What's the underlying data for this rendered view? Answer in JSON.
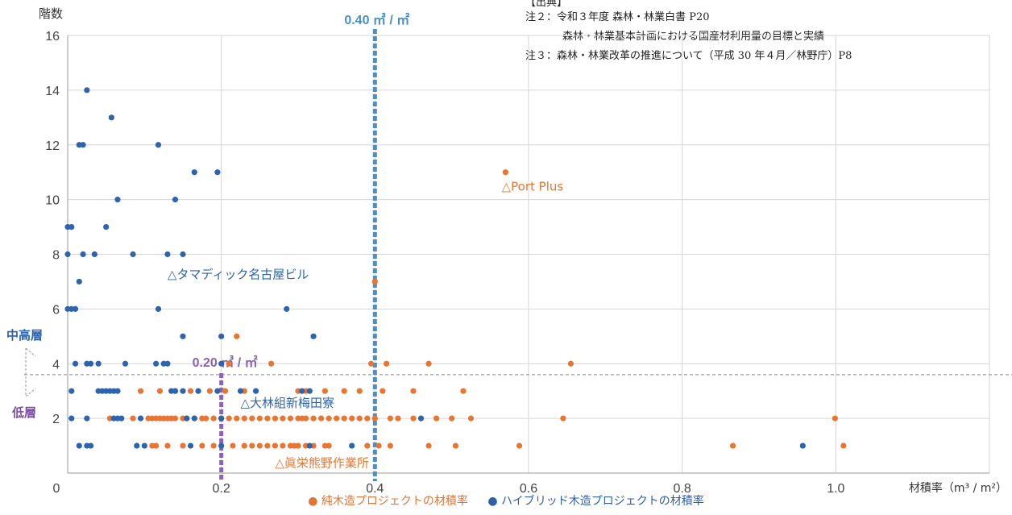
{
  "notes": {
    "source_header": "【出典】",
    "note2_line1": "注２：令和３年度 森林・林業白書 P20",
    "note2_line2": "森林・林業基本計画における国産材利用量の目標と実績",
    "note3": "注３：森林・林業改革の推進について（平成 30 年４月／林野庁）P8"
  },
  "legend": {
    "pure_label": "● 純木造プロジェクトの材積率",
    "hybrid_label": "● ハイブリッド木造プロジェクトの材積率"
  },
  "colors": {
    "pure": "#e87632",
    "hybrid": "#2e63ad",
    "line040": "#4a90c8",
    "line020": "#8b63b0",
    "grid": "#d6d6d6",
    "threshold": "#888888"
  },
  "chart_data": {
    "type": "scatter",
    "xlabel": "材積率（m³ / m²）",
    "ylabel": "階数",
    "xlim": [
      0,
      1.2
    ],
    "ylim": [
      0,
      16
    ],
    "x_ticks": [
      "0",
      "0.2",
      "0.4",
      "0.6",
      "0.8",
      "1.0"
    ],
    "x_tick_values": [
      0,
      0.2,
      0.4,
      0.6,
      0.8,
      1.0
    ],
    "y_ticks": [
      "2",
      "4",
      "6",
      "8",
      "10",
      "12",
      "14",
      "16"
    ],
    "y_tick_values": [
      2,
      4,
      6,
      8,
      10,
      12,
      14,
      16
    ],
    "grid": "both",
    "reference_lines": [
      {
        "x": 0.4,
        "label": "0.40 ㎥ / ㎡",
        "color": "#4a90c8"
      },
      {
        "x": 0.2,
        "label": "0.20 ㎥ / ㎡",
        "color": "#8b63b0"
      }
    ],
    "threshold": {
      "y": 3.6,
      "upper_label": "中高層",
      "lower_label": "低層"
    },
    "annotations": [
      {
        "text": "△Port Plus",
        "x": 0.565,
        "y": 10.5,
        "series": "pure"
      },
      {
        "text": "△タマディック名古屋ビル",
        "x": 0.13,
        "y": 7.3,
        "series": "hybrid"
      },
      {
        "text": "△大林組新梅田寮",
        "x": 0.225,
        "y": 2.6,
        "series": "hybrid"
      },
      {
        "text": "△眞栄熊野作業所",
        "x": 0.27,
        "y": 0.4,
        "series": "pure"
      }
    ],
    "series": [
      {
        "name": "純木造プロジェクトの材積率",
        "key": "pure",
        "points": [
          [
            0.57,
            11
          ],
          [
            0.4,
            7
          ],
          [
            0.22,
            5
          ],
          [
            0.21,
            4
          ],
          [
            0.265,
            4
          ],
          [
            0.395,
            4
          ],
          [
            0.415,
            4
          ],
          [
            0.47,
            4
          ],
          [
            0.655,
            4
          ],
          [
            0.095,
            3
          ],
          [
            0.12,
            3
          ],
          [
            0.14,
            3
          ],
          [
            0.16,
            3
          ],
          [
            0.185,
            3
          ],
          [
            0.205,
            3
          ],
          [
            0.23,
            3
          ],
          [
            0.3,
            3
          ],
          [
            0.31,
            3
          ],
          [
            0.335,
            3
          ],
          [
            0.36,
            3
          ],
          [
            0.38,
            3
          ],
          [
            0.41,
            3
          ],
          [
            0.45,
            3
          ],
          [
            0.515,
            3
          ],
          [
            0.055,
            2
          ],
          [
            0.085,
            2
          ],
          [
            0.105,
            2
          ],
          [
            0.11,
            2
          ],
          [
            0.115,
            2
          ],
          [
            0.12,
            2
          ],
          [
            0.125,
            2
          ],
          [
            0.13,
            2
          ],
          [
            0.135,
            2
          ],
          [
            0.14,
            2
          ],
          [
            0.15,
            2
          ],
          [
            0.155,
            2
          ],
          [
            0.165,
            2
          ],
          [
            0.175,
            2
          ],
          [
            0.18,
            2
          ],
          [
            0.19,
            2
          ],
          [
            0.2,
            2
          ],
          [
            0.21,
            2
          ],
          [
            0.22,
            2
          ],
          [
            0.23,
            2
          ],
          [
            0.24,
            2
          ],
          [
            0.25,
            2
          ],
          [
            0.26,
            2
          ],
          [
            0.27,
            2
          ],
          [
            0.28,
            2
          ],
          [
            0.29,
            2
          ],
          [
            0.3,
            2
          ],
          [
            0.305,
            2
          ],
          [
            0.31,
            2
          ],
          [
            0.32,
            2
          ],
          [
            0.33,
            2
          ],
          [
            0.34,
            2
          ],
          [
            0.35,
            2
          ],
          [
            0.36,
            2
          ],
          [
            0.37,
            2
          ],
          [
            0.38,
            2
          ],
          [
            0.39,
            2
          ],
          [
            0.4,
            2
          ],
          [
            0.42,
            2
          ],
          [
            0.43,
            2
          ],
          [
            0.45,
            2
          ],
          [
            0.48,
            2
          ],
          [
            0.5,
            2
          ],
          [
            0.525,
            2
          ],
          [
            0.645,
            2
          ],
          [
            0.999,
            2
          ],
          [
            0.11,
            1
          ],
          [
            0.115,
            1
          ],
          [
            0.13,
            1
          ],
          [
            0.15,
            1
          ],
          [
            0.175,
            1
          ],
          [
            0.19,
            1
          ],
          [
            0.215,
            1
          ],
          [
            0.23,
            1
          ],
          [
            0.24,
            1
          ],
          [
            0.25,
            1
          ],
          [
            0.26,
            1
          ],
          [
            0.27,
            1
          ],
          [
            0.28,
            1
          ],
          [
            0.29,
            1
          ],
          [
            0.295,
            1
          ],
          [
            0.3,
            1
          ],
          [
            0.31,
            1
          ],
          [
            0.32,
            1
          ],
          [
            0.335,
            1
          ],
          [
            0.34,
            1
          ],
          [
            0.39,
            1
          ],
          [
            0.405,
            1
          ],
          [
            0.42,
            1
          ],
          [
            0.47,
            1
          ],
          [
            0.505,
            1
          ],
          [
            0.588,
            1
          ],
          [
            0.866,
            1
          ],
          [
            1.01,
            1
          ]
        ]
      },
      {
        "name": "ハイブリッド木造プロジェクトの材積率",
        "key": "hybrid",
        "points": [
          [
            0.025,
            14
          ],
          [
            0.057,
            13
          ],
          [
            0.015,
            12
          ],
          [
            0.02,
            12
          ],
          [
            0.118,
            12
          ],
          [
            0.165,
            11
          ],
          [
            0.195,
            11
          ],
          [
            0.065,
            10
          ],
          [
            0.14,
            10
          ],
          [
            0.0,
            9
          ],
          [
            0.005,
            9
          ],
          [
            0.05,
            9
          ],
          [
            0.0,
            8
          ],
          [
            0.02,
            8
          ],
          [
            0.035,
            8
          ],
          [
            0.085,
            8
          ],
          [
            0.13,
            8
          ],
          [
            0.15,
            8
          ],
          [
            0.015,
            7
          ],
          [
            0.0,
            6
          ],
          [
            0.005,
            6
          ],
          [
            0.01,
            6
          ],
          [
            0.118,
            6
          ],
          [
            0.285,
            6
          ],
          [
            0.15,
            5
          ],
          [
            0.2,
            5
          ],
          [
            0.32,
            5
          ],
          [
            0.01,
            4
          ],
          [
            0.025,
            4
          ],
          [
            0.03,
            4
          ],
          [
            0.04,
            4
          ],
          [
            0.075,
            4
          ],
          [
            0.115,
            4
          ],
          [
            0.125,
            4
          ],
          [
            0.13,
            4
          ],
          [
            0.2,
            4
          ],
          [
            0.005,
            3
          ],
          [
            0.04,
            3
          ],
          [
            0.045,
            3
          ],
          [
            0.05,
            3
          ],
          [
            0.055,
            3
          ],
          [
            0.06,
            3
          ],
          [
            0.065,
            3
          ],
          [
            0.135,
            3
          ],
          [
            0.14,
            3
          ],
          [
            0.15,
            3
          ],
          [
            0.17,
            3
          ],
          [
            0.195,
            3
          ],
          [
            0.225,
            3
          ],
          [
            0.245,
            3
          ],
          [
            0.305,
            3
          ],
          [
            0.315,
            3
          ],
          [
            0.005,
            2
          ],
          [
            0.025,
            2
          ],
          [
            0.06,
            2
          ],
          [
            0.065,
            2
          ],
          [
            0.07,
            2
          ],
          [
            0.095,
            2
          ],
          [
            0.155,
            2
          ],
          [
            0.165,
            2
          ],
          [
            0.2,
            2
          ],
          [
            0.46,
            2
          ],
          [
            0.015,
            1
          ],
          [
            0.025,
            1
          ],
          [
            0.03,
            1
          ],
          [
            0.09,
            1
          ],
          [
            0.1,
            1
          ],
          [
            0.16,
            1
          ],
          [
            0.2,
            1
          ],
          [
            0.315,
            1
          ],
          [
            0.37,
            1
          ],
          [
            0.957,
            1
          ]
        ]
      }
    ]
  }
}
